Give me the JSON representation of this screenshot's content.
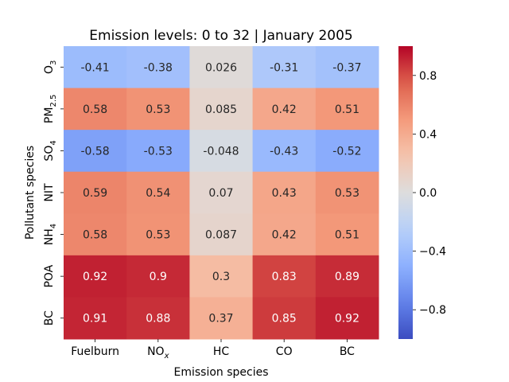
{
  "chart_data": {
    "type": "heatmap",
    "title": "Emission levels: 0 to 32 | January 2005",
    "xlabel": "Emission species",
    "ylabel": "Pollutant species",
    "x_categories": [
      {
        "base": "Fuelburn",
        "sub": "",
        "sup": "",
        "subItalic": false
      },
      {
        "base": "NO",
        "sub": "x",
        "sup": "",
        "subItalic": true
      },
      {
        "base": "HC",
        "sub": "",
        "sup": "",
        "subItalic": false
      },
      {
        "base": "CO",
        "sub": "",
        "sup": "",
        "subItalic": false
      },
      {
        "base": "BC",
        "sub": "",
        "sup": "",
        "subItalic": false
      }
    ],
    "y_categories": [
      {
        "base": "O",
        "sub": "3"
      },
      {
        "base": "PM",
        "sub": "2.5"
      },
      {
        "base": "SO",
        "sub": "4"
      },
      {
        "base": "NIT",
        "sub": ""
      },
      {
        "base": "NH",
        "sub": "4"
      },
      {
        "base": "POA",
        "sub": ""
      },
      {
        "base": "BC",
        "sub": ""
      }
    ],
    "values": [
      [
        -0.41,
        -0.38,
        0.026,
        -0.31,
        -0.37
      ],
      [
        0.58,
        0.53,
        0.085,
        0.42,
        0.51
      ],
      [
        -0.58,
        -0.53,
        -0.048,
        -0.43,
        -0.52
      ],
      [
        0.59,
        0.54,
        0.07,
        0.43,
        0.53
      ],
      [
        0.58,
        0.53,
        0.087,
        0.42,
        0.51
      ],
      [
        0.92,
        0.9,
        0.3,
        0.83,
        0.89
      ],
      [
        0.91,
        0.88,
        0.37,
        0.85,
        0.92
      ]
    ],
    "labels": [
      [
        "-0.41",
        "-0.38",
        "0.026",
        "-0.31",
        "-0.37"
      ],
      [
        "0.58",
        "0.53",
        "0.085",
        "0.42",
        "0.51"
      ],
      [
        "-0.58",
        "-0.53",
        "-0.048",
        "-0.43",
        "-0.52"
      ],
      [
        "0.59",
        "0.54",
        "0.07",
        "0.43",
        "0.53"
      ],
      [
        "0.58",
        "0.53",
        "0.087",
        "0.42",
        "0.51"
      ],
      [
        "0.92",
        "0.9",
        "0.3",
        "0.83",
        "0.89"
      ],
      [
        "0.91",
        "0.88",
        "0.37",
        "0.85",
        "0.92"
      ]
    ],
    "colormap": "coolwarm",
    "vmin": -1.0,
    "vmax": 1.0,
    "colorbar_ticks": [
      0.8,
      0.4,
      0.0,
      -0.4,
      -0.8
    ],
    "colorbar_tick_labels": [
      "0.8",
      "0.4",
      "0.0",
      "−0.4",
      "−0.8"
    ]
  }
}
